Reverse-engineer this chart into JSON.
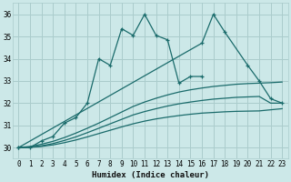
{
  "xlabel": "Humidex (Indice chaleur)",
  "bg_color": "#cce8e8",
  "grid_color": "#aacccc",
  "line_color": "#1a6b6b",
  "xlim": [
    -0.5,
    23.5
  ],
  "ylim": [
    29.5,
    36.5
  ],
  "yticks": [
    30,
    31,
    32,
    33,
    34,
    35,
    36
  ],
  "xticks": [
    0,
    1,
    2,
    3,
    4,
    5,
    6,
    7,
    8,
    9,
    10,
    11,
    12,
    13,
    14,
    15,
    16,
    17,
    18,
    19,
    20,
    21,
    22,
    23
  ],
  "series_marked": [
    {
      "x": [
        0,
        1,
        2,
        3,
        4,
        5,
        6,
        7,
        8,
        9,
        10,
        11,
        12,
        13,
        14,
        15,
        16
      ],
      "y": [
        30.0,
        30.0,
        30.3,
        30.5,
        31.1,
        31.35,
        32.0,
        34.0,
        33.7,
        35.35,
        35.05,
        36.0,
        35.05,
        34.85,
        32.9,
        33.2,
        33.2
      ]
    },
    {
      "x": [
        0,
        16,
        17,
        18,
        20,
        21,
        22,
        23
      ],
      "y": [
        30.0,
        34.7,
        36.0,
        35.2,
        33.7,
        33.0,
        32.2,
        32.0
      ]
    }
  ],
  "series_smooth": [
    {
      "x": [
        0,
        1,
        2,
        3,
        4,
        5,
        6,
        7,
        8,
        9,
        10,
        11,
        12,
        13,
        14,
        15,
        16,
        17,
        18,
        19,
        20,
        21,
        22,
        23
      ],
      "y": [
        30.0,
        30.05,
        30.15,
        30.28,
        30.45,
        30.65,
        30.87,
        31.1,
        31.35,
        31.6,
        31.85,
        32.05,
        32.22,
        32.37,
        32.5,
        32.6,
        32.68,
        32.75,
        32.8,
        32.85,
        32.88,
        32.9,
        32.92,
        32.95
      ]
    },
    {
      "x": [
        0,
        1,
        2,
        3,
        4,
        5,
        6,
        7,
        8,
        9,
        10,
        11,
        12,
        13,
        14,
        15,
        16,
        17,
        18,
        19,
        20,
        21,
        22,
        23
      ],
      "y": [
        30.0,
        30.02,
        30.08,
        30.18,
        30.32,
        30.48,
        30.67,
        30.87,
        31.07,
        31.27,
        31.47,
        31.62,
        31.75,
        31.87,
        31.97,
        32.05,
        32.12,
        32.18,
        32.22,
        32.26,
        32.28,
        32.3,
        32.0,
        32.0
      ]
    },
    {
      "x": [
        0,
        1,
        2,
        3,
        4,
        5,
        6,
        7,
        8,
        9,
        10,
        11,
        12,
        13,
        14,
        15,
        16,
        17,
        18,
        19,
        20,
        21,
        22,
        23
      ],
      "y": [
        30.0,
        30.01,
        30.05,
        30.12,
        30.22,
        30.34,
        30.48,
        30.63,
        30.78,
        30.93,
        31.07,
        31.19,
        31.29,
        31.37,
        31.44,
        31.5,
        31.55,
        31.58,
        31.61,
        31.63,
        31.64,
        31.65,
        31.7,
        31.75
      ]
    }
  ]
}
